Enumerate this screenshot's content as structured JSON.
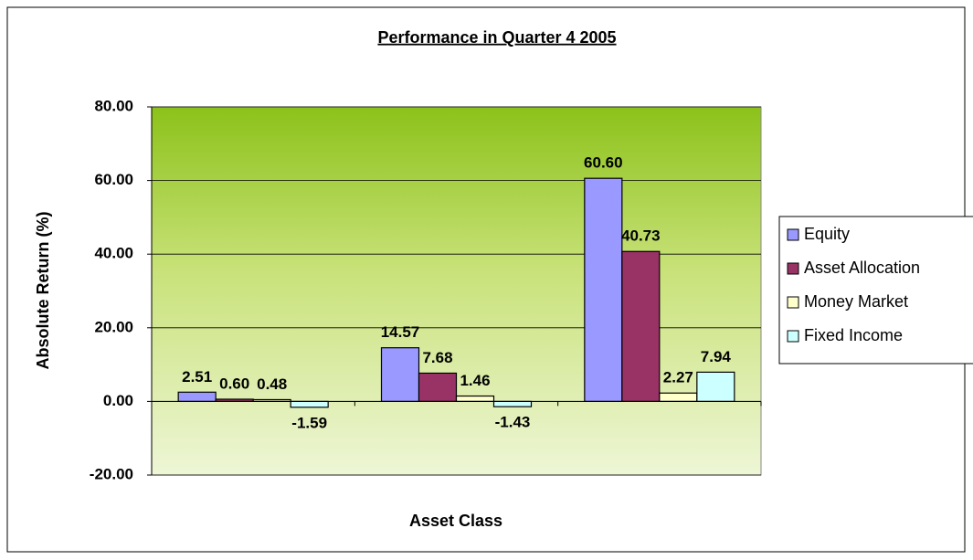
{
  "chart_data": {
    "type": "bar",
    "title": "Performance in Quarter 4 2005",
    "y_label": "Absolute Return (%)",
    "x_label": "Asset Class",
    "categories": [
      null,
      null,
      null
    ],
    "series": [
      {
        "name": "Equity",
        "color": "#9999ff",
        "values": [
          2.51,
          14.57,
          60.6
        ],
        "value_labels": [
          "2.51",
          "14.57",
          "60.60"
        ]
      },
      {
        "name": "Asset Allocation",
        "color": "#993366",
        "values": [
          0.6,
          7.68,
          40.73
        ],
        "value_labels": [
          "0.60",
          "7.68",
          "40.73"
        ]
      },
      {
        "name": "Money Market",
        "color": "#ffffcc",
        "values": [
          0.48,
          1.46,
          2.27
        ],
        "value_labels": [
          "0.48",
          "1.46",
          "2.27"
        ]
      },
      {
        "name": "Fixed Income",
        "color": "#ccffff",
        "values": [
          -1.59,
          -1.43,
          7.94
        ],
        "value_labels": [
          "-1.59",
          "-1.43",
          "7.94"
        ]
      }
    ],
    "ylim": [
      -20,
      80
    ],
    "yticks": [
      {
        "value": -20,
        "label": "-20.00"
      },
      {
        "value": 0,
        "label": "0.00"
      },
      {
        "value": 20,
        "label": "20.00"
      },
      {
        "value": 40,
        "label": "40.00"
      },
      {
        "value": 60,
        "label": "60.00"
      },
      {
        "value": 80,
        "label": "80.00"
      }
    ],
    "grid": true,
    "legend": "right"
  }
}
